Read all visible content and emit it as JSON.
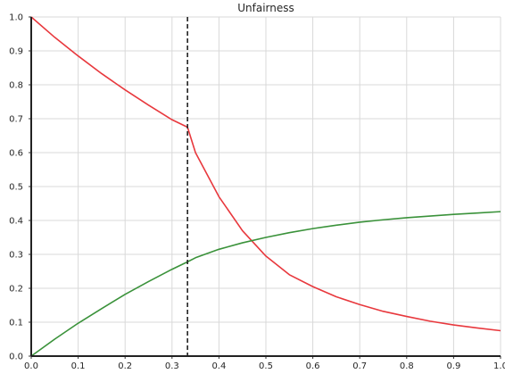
{
  "chart_data": {
    "type": "line",
    "title": "Unfairness",
    "xlabel": "",
    "ylabel": "",
    "xlim": [
      0,
      1.0
    ],
    "ylim": [
      0,
      1.0
    ],
    "grid": true,
    "legend": "none",
    "x_ticks": [
      "0.0",
      "0.1",
      "0.2",
      "0.3",
      "0.4",
      "0.5",
      "0.6",
      "0.7",
      "0.8",
      "0.9",
      "1.0"
    ],
    "y_ticks": [
      "0.0",
      "0.1",
      "0.2",
      "0.3",
      "0.4",
      "0.5",
      "0.6",
      "0.7",
      "0.8",
      "0.9",
      "1.0"
    ],
    "vertical_line": {
      "x": 0.333,
      "style": "dashed",
      "color": "#222222"
    },
    "series": [
      {
        "color": "#e8383d",
        "x": [
          0.0,
          0.05,
          0.1,
          0.15,
          0.2,
          0.25,
          0.3,
          0.333,
          0.35,
          0.4,
          0.45,
          0.5,
          0.55,
          0.6,
          0.65,
          0.7,
          0.75,
          0.8,
          0.85,
          0.9,
          0.95,
          1.0
        ],
        "y": [
          1.0,
          0.94,
          0.885,
          0.833,
          0.785,
          0.74,
          0.697,
          0.675,
          0.6,
          0.47,
          0.37,
          0.295,
          0.24,
          0.205,
          0.175,
          0.152,
          0.132,
          0.117,
          0.103,
          0.092,
          0.083,
          0.075
        ]
      },
      {
        "color": "#3a923a",
        "x": [
          0.0,
          0.05,
          0.1,
          0.15,
          0.2,
          0.25,
          0.3,
          0.333,
          0.35,
          0.4,
          0.45,
          0.5,
          0.55,
          0.6,
          0.65,
          0.7,
          0.75,
          0.8,
          0.85,
          0.9,
          0.95,
          1.0
        ],
        "y": [
          0.0,
          0.05,
          0.097,
          0.14,
          0.182,
          0.22,
          0.256,
          0.278,
          0.29,
          0.315,
          0.334,
          0.35,
          0.364,
          0.376,
          0.386,
          0.395,
          0.402,
          0.408,
          0.413,
          0.418,
          0.422,
          0.426
        ]
      }
    ]
  }
}
